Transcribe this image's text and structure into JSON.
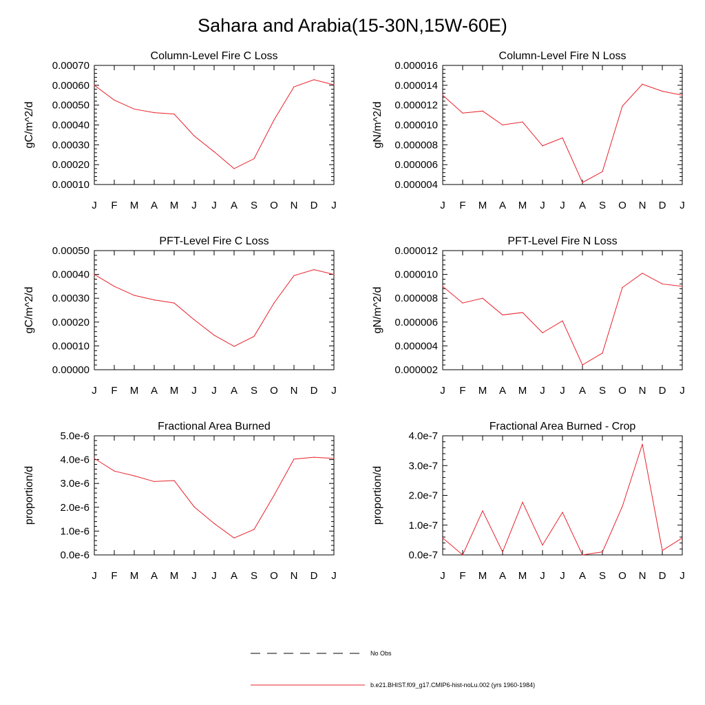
{
  "title": "Sahara and Arabia(15-30N,15W-60E)",
  "colors": {
    "model_line": "#e8202a",
    "axis": "#000000",
    "obs_line": "#000000"
  },
  "legend": {
    "entries": [
      {
        "label": "No Obs",
        "style": "dashed",
        "color": "#000000"
      },
      {
        "label": "b.e21.BHIST.f09_g17.CMIP6-hist-noLu.002 (yrs 1960-1984)",
        "style": "solid",
        "color": "#e8202a"
      }
    ]
  },
  "chart_data": [
    {
      "type": "line",
      "title": "Column-Level Fire C Loss",
      "ylabel": "gC/m^2/d",
      "categories": [
        "J",
        "F",
        "M",
        "A",
        "M",
        "J",
        "J",
        "A",
        "S",
        "O",
        "N",
        "D",
        "J"
      ],
      "ylim": [
        0.0001,
        0.0007
      ],
      "yticks": [
        "0.00010",
        "0.00020",
        "0.00030",
        "0.00040",
        "0.00050",
        "0.00060",
        "0.00070"
      ],
      "series": [
        {
          "values": [
            0.0006,
            0.000525,
            0.00048,
            0.000462,
            0.000455,
            0.000345,
            0.000265,
            0.00018,
            0.00023,
            0.000425,
            0.000592,
            0.000628,
            0.000602
          ]
        }
      ]
    },
    {
      "type": "line",
      "title": "Column-Level Fire N Loss",
      "ylabel": "gN/m^2/d",
      "categories": [
        "J",
        "F",
        "M",
        "A",
        "M",
        "J",
        "J",
        "A",
        "S",
        "O",
        "N",
        "D",
        "J"
      ],
      "ylim": [
        4e-06,
        1.6e-05
      ],
      "yticks": [
        "0.000004",
        "0.000006",
        "0.000008",
        "0.000010",
        "0.000012",
        "0.000014",
        "0.000016"
      ],
      "series": [
        {
          "values": [
            1.3e-05,
            1.12e-05,
            1.14e-05,
            1e-05,
            1.03e-05,
            7.9e-06,
            8.7e-06,
            4.2e-06,
            5.3e-06,
            1.19e-05,
            1.41e-05,
            1.34e-05,
            1.3e-05
          ]
        }
      ]
    },
    {
      "type": "line",
      "title": "PFT-Level Fire C Loss",
      "ylabel": "gC/m^2/d",
      "categories": [
        "J",
        "F",
        "M",
        "A",
        "M",
        "J",
        "J",
        "A",
        "S",
        "O",
        "N",
        "D",
        "J"
      ],
      "ylim": [
        0.0,
        0.0005
      ],
      "yticks": [
        "0.00000",
        "0.00010",
        "0.00020",
        "0.00030",
        "0.00040",
        "0.00050"
      ],
      "series": [
        {
          "values": [
            0.0004,
            0.00035,
            0.000312,
            0.000293,
            0.00028,
            0.00021,
            0.000145,
            9.8e-05,
            0.00014,
            0.00028,
            0.000395,
            0.00042,
            0.0004
          ]
        }
      ]
    },
    {
      "type": "line",
      "title": "PFT-Level Fire N Loss",
      "ylabel": "gN/m^2/d",
      "categories": [
        "J",
        "F",
        "M",
        "A",
        "M",
        "J",
        "J",
        "A",
        "S",
        "O",
        "N",
        "D",
        "J"
      ],
      "ylim": [
        2e-06,
        1.2e-05
      ],
      "yticks": [
        "0.000002",
        "0.000004",
        "0.000006",
        "0.000008",
        "0.000010",
        "0.000012"
      ],
      "series": [
        {
          "values": [
            9e-06,
            7.6e-06,
            8e-06,
            6.6e-06,
            6.8e-06,
            5.1e-06,
            6.1e-06,
            2.4e-06,
            3.4e-06,
            8.9e-06,
            1.01e-05,
            9.2e-06,
            9e-06
          ]
        }
      ]
    },
    {
      "type": "line",
      "title": "Fractional Area Burned",
      "ylabel": "proportion/d",
      "categories": [
        "J",
        "F",
        "M",
        "A",
        "M",
        "J",
        "J",
        "A",
        "S",
        "O",
        "N",
        "D",
        "J"
      ],
      "ylim": [
        0.0,
        5e-06
      ],
      "yticks": [
        "0.0e-6",
        "1.0e-6",
        "2.0e-6",
        "3.0e-6",
        "4.0e-6",
        "5.0e-6"
      ],
      "series": [
        {
          "values": [
            4.05e-06,
            3.52e-06,
            3.32e-06,
            3.08e-06,
            3.12e-06,
            2.02e-06,
            1.32e-06,
            7.1e-07,
            1.07e-06,
            2.5e-06,
            4.02e-06,
            4.1e-06,
            4.05e-06
          ]
        }
      ]
    },
    {
      "type": "line",
      "title": "Fractional Area Burned - Crop",
      "ylabel": "proportion/d",
      "categories": [
        "J",
        "F",
        "M",
        "A",
        "M",
        "J",
        "J",
        "A",
        "S",
        "O",
        "N",
        "D",
        "J"
      ],
      "ylim": [
        0.0,
        4e-07
      ],
      "yticks": [
        "0.0e-7",
        "1.0e-7",
        "2.0e-7",
        "3.0e-7",
        "4.0e-7"
      ],
      "series": [
        {
          "values": [
            5.7e-08,
            0.0,
            1.48e-07,
            1e-08,
            1.77e-07,
            3.3e-08,
            1.43e-07,
            0.0,
            1e-08,
            1.63e-07,
            3.72e-07,
            1.5e-08,
            5.7e-08
          ]
        }
      ]
    }
  ]
}
